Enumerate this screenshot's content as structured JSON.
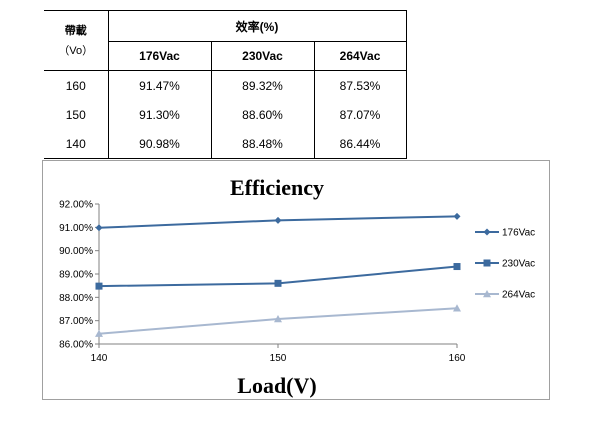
{
  "table": {
    "load_header": "帶載",
    "load_unit": "（Vo）",
    "eff_header": "效率(%)",
    "columns": [
      "176Vac",
      "230Vac",
      "264Vac"
    ],
    "rows": [
      {
        "load": "160",
        "values": [
          "91.47%",
          "89.32%",
          "87.53%"
        ]
      },
      {
        "load": "150",
        "values": [
          "91.30%",
          "88.60%",
          "87.07%"
        ]
      },
      {
        "load": "140",
        "values": [
          "90.98%",
          "88.48%",
          "86.44%"
        ]
      }
    ]
  },
  "chart_data": {
    "type": "line",
    "title": "Efficiency",
    "xlabel": "Load(V)",
    "ylabel": "",
    "x": [
      140,
      150,
      160
    ],
    "xlim": [
      140,
      160
    ],
    "ylim": [
      86.0,
      92.0
    ],
    "y_ticks": [
      "86.00%",
      "87.00%",
      "88.00%",
      "89.00%",
      "90.00%",
      "91.00%",
      "92.00%"
    ],
    "x_ticks": [
      "140",
      "150",
      "160"
    ],
    "grid": false,
    "legend_position": "right",
    "series": [
      {
        "name": "176Vac",
        "values": [
          90.98,
          91.3,
          91.47
        ],
        "color": "#3c6a9e",
        "marker": "diamond"
      },
      {
        "name": "230Vac",
        "values": [
          88.48,
          88.6,
          89.32
        ],
        "color": "#3c6a9e",
        "marker": "square"
      },
      {
        "name": "264Vac",
        "values": [
          86.44,
          87.07,
          87.53
        ],
        "color": "#a8b8d0",
        "marker": "triangle"
      }
    ]
  }
}
